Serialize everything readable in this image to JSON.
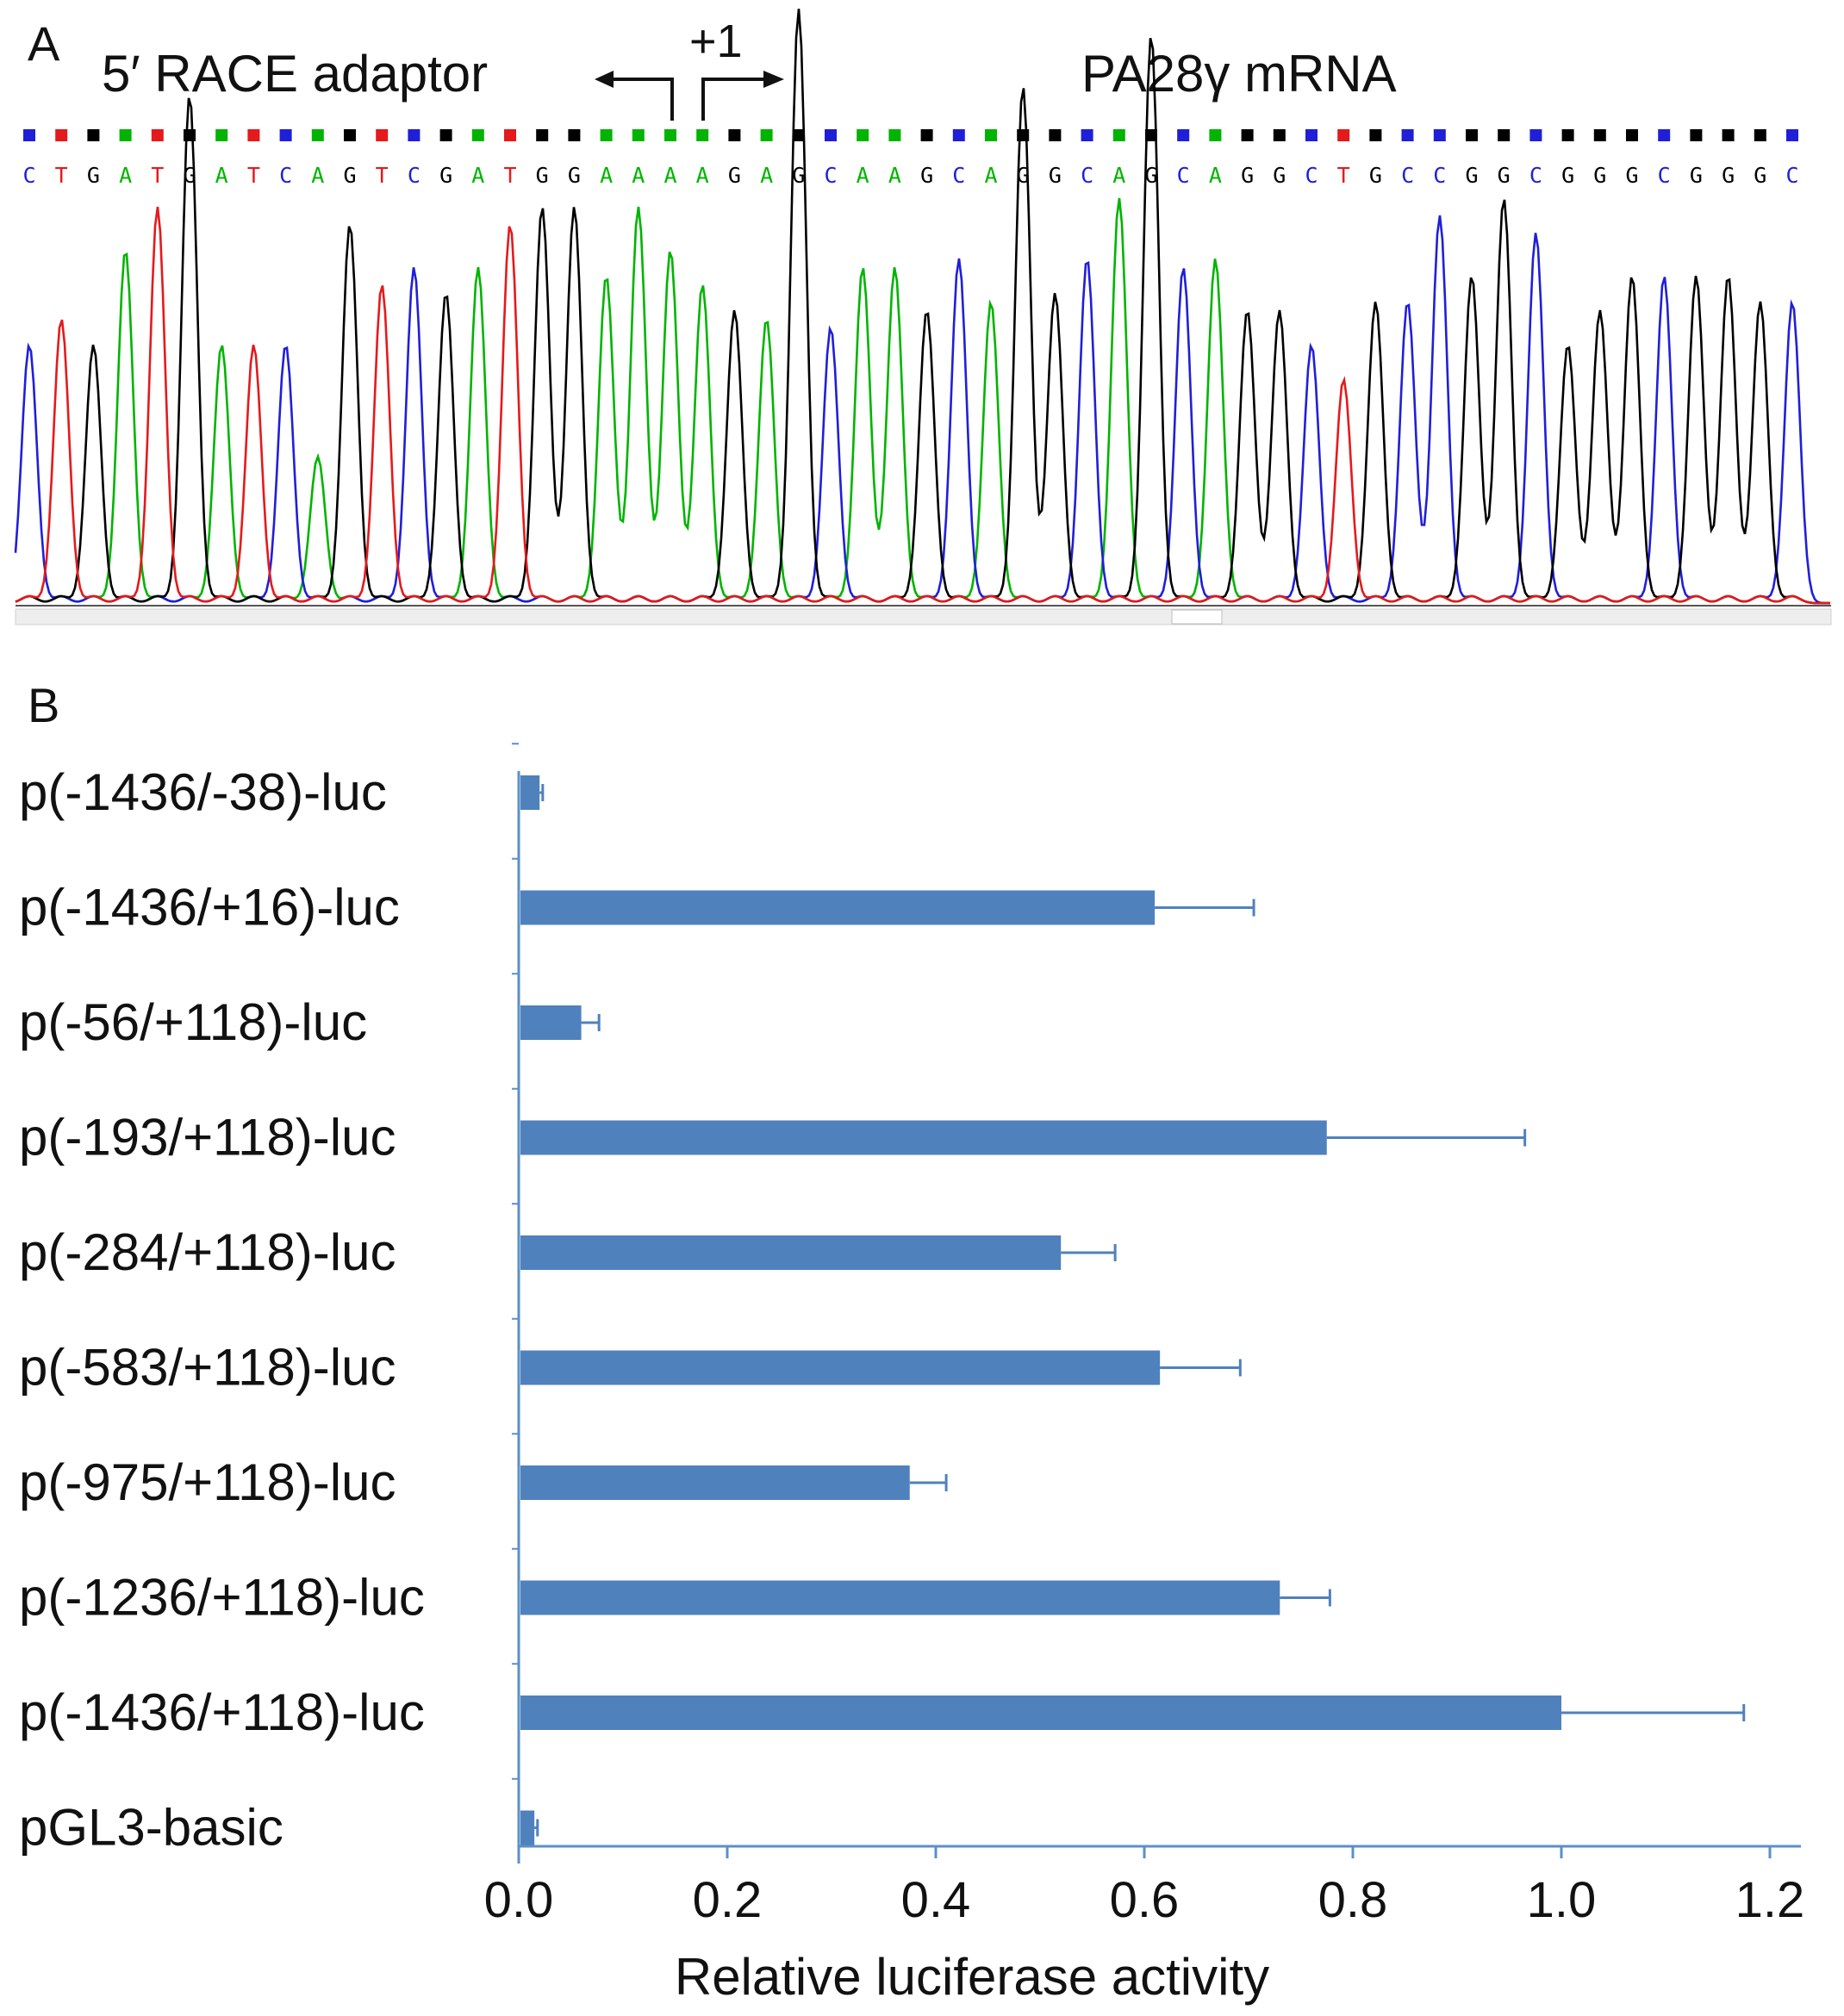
{
  "colors": {
    "A": "#00b400",
    "C": "#1f1fd9",
    "G": "#000000",
    "T": "#e41a1c",
    "bar": "#4f81bd",
    "axis": "#5b8fc8"
  },
  "panelA": {
    "label": "A",
    "adaptor_label": "5′ RACE adaptor",
    "tss_label": "+1",
    "mrna_label": "PA28γ mRNA",
    "sequence": "CTGATGATCAGTCGATGGAAAAGAGCAAGCAGGCAGCAGGCTGCCGGCGGGCGGGC",
    "tss_position": 22
  },
  "chart_data": {
    "type": "bar",
    "orientation": "horizontal",
    "panel_label": "B",
    "xlabel": "Relative luciferase activity",
    "xlim": [
      0,
      1.22
    ],
    "ticks": [
      "0.0",
      "0.2",
      "0.4",
      "0.6",
      "0.8",
      "1.0",
      "1.2"
    ],
    "categories": [
      "p(-1436/-38)-luc",
      "p(-1436/+16)-luc",
      "p(-56/+118)-luc",
      "p(-193/+118)-luc",
      "p(-284/+118)-luc",
      "p(-583/+118)-luc",
      "p(-975/+118)-luc",
      "p(-1236/+118)-luc",
      "p(-1436/+118)-luc",
      "pGL3-basic"
    ],
    "values": [
      0.02,
      0.61,
      0.06,
      0.775,
      0.52,
      0.615,
      0.375,
      0.73,
      1.0,
      0.015
    ],
    "errors": [
      0.003,
      0.095,
      0.017,
      0.19,
      0.052,
      0.077,
      0.035,
      0.048,
      0.175,
      0.003
    ]
  }
}
